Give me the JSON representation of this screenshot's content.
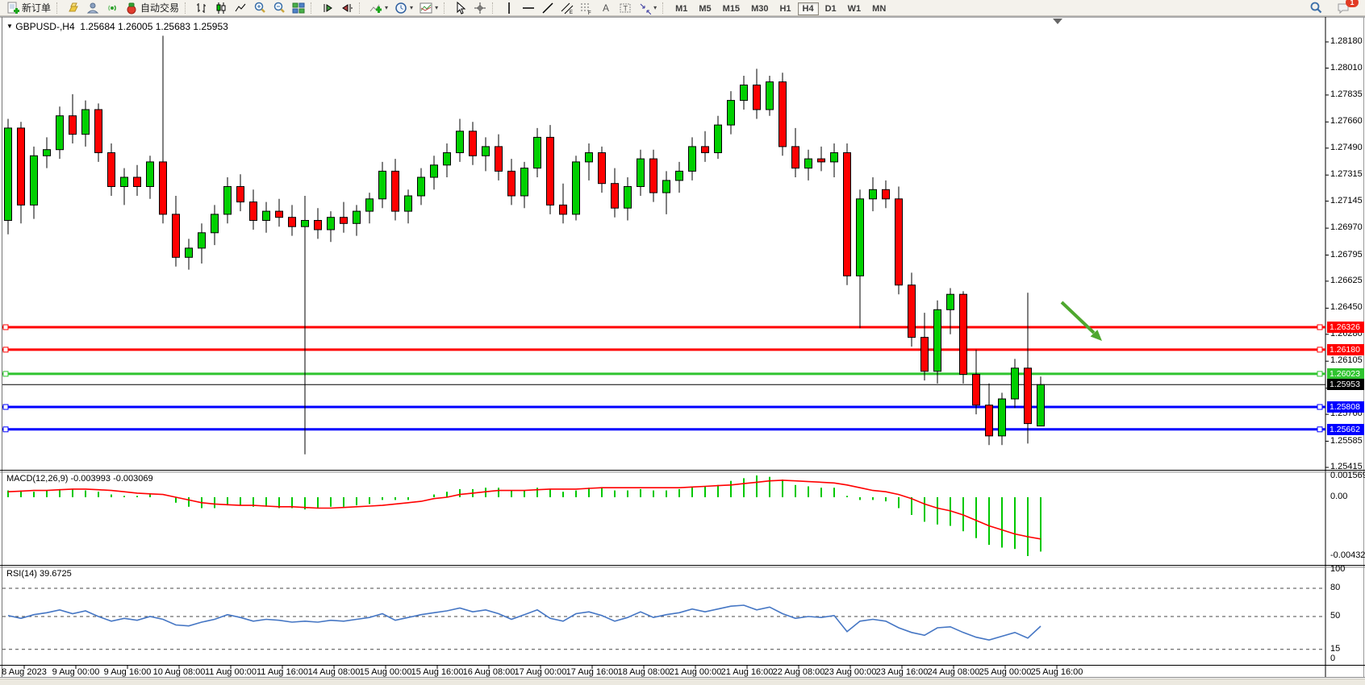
{
  "toolbar": {
    "new_order_label": "新订单",
    "autotrade_label": "自动交易",
    "timeframes": [
      "M1",
      "M5",
      "M15",
      "M30",
      "H1",
      "H4",
      "D1",
      "W1",
      "MN"
    ],
    "active_timeframe": "H4",
    "notification_badge": "1"
  },
  "chart": {
    "symbol_period": "GBPUSD-,H4",
    "ohlc_text": "1.25684 1.26005 1.25683 1.25953",
    "open": "1.25684",
    "high": "1.26005",
    "low": "1.25683",
    "close": "1.25953"
  },
  "chart_data": {
    "type": "candlestick",
    "symbol": "GBPUSD-",
    "timeframe": "H4",
    "bull_color": "#00d000",
    "bear_color": "#ff0000",
    "price_axis_ticks": [
      "1.28180",
      "1.28010",
      "1.27835",
      "1.27660",
      "1.27490",
      "1.27315",
      "1.27145",
      "1.26970",
      "1.26795",
      "1.26625",
      "1.26450",
      "1.26280",
      "1.26105",
      "1.25930",
      "1.25760",
      "1.25585",
      "1.25415"
    ],
    "x_labels": [
      "8 Aug 2023",
      "9 Aug 00:00",
      "9 Aug 16:00",
      "10 Aug 08:00",
      "11 Aug 00:00",
      "11 Aug 16:00",
      "14 Aug 08:00",
      "15 Aug 00:00",
      "15 Aug 16:00",
      "16 Aug 08:00",
      "17 Aug 00:00",
      "17 Aug 16:00",
      "18 Aug 08:00",
      "21 Aug 00:00",
      "21 Aug 16:00",
      "22 Aug 08:00",
      "23 Aug 00:00",
      "23 Aug 16:00",
      "24 Aug 08:00",
      "25 Aug 00:00",
      "25 Aug 16:00"
    ],
    "candles": [
      [
        1.2702,
        1.2768,
        1.2693,
        1.2762
      ],
      [
        1.2762,
        1.2766,
        1.27,
        1.2712
      ],
      [
        1.2712,
        1.275,
        1.2703,
        1.2744
      ],
      [
        1.2744,
        1.2756,
        1.2736,
        1.2748
      ],
      [
        1.2748,
        1.2776,
        1.2742,
        1.277
      ],
      [
        1.277,
        1.2784,
        1.2752,
        1.2758
      ],
      [
        1.2758,
        1.278,
        1.275,
        1.2774
      ],
      [
        1.2774,
        1.2778,
        1.274,
        1.2746
      ],
      [
        1.2746,
        1.2752,
        1.2718,
        1.2724
      ],
      [
        1.2724,
        1.2736,
        1.2712,
        1.273
      ],
      [
        1.273,
        1.2738,
        1.2718,
        1.2724
      ],
      [
        1.2724,
        1.2744,
        1.2716,
        1.274
      ],
      [
        1.274,
        1.2822,
        1.27,
        1.2706
      ],
      [
        1.2706,
        1.2718,
        1.2672,
        1.2678
      ],
      [
        1.2678,
        1.269,
        1.267,
        1.2684
      ],
      [
        1.2684,
        1.27,
        1.2674,
        1.2694
      ],
      [
        1.2694,
        1.2712,
        1.2686,
        1.2706
      ],
      [
        1.2706,
        1.273,
        1.27,
        1.2724
      ],
      [
        1.2724,
        1.2732,
        1.2708,
        1.2714
      ],
      [
        1.2714,
        1.2722,
        1.2696,
        1.2702
      ],
      [
        1.2702,
        1.2714,
        1.2694,
        1.2708
      ],
      [
        1.2708,
        1.2716,
        1.2698,
        1.2704
      ],
      [
        1.2704,
        1.2712,
        1.2692,
        1.2698
      ],
      [
        1.2698,
        1.2718,
        1.255,
        1.2702
      ],
      [
        1.2702,
        1.271,
        1.269,
        1.2696
      ],
      [
        1.2696,
        1.2708,
        1.2688,
        1.2704
      ],
      [
        1.2704,
        1.2714,
        1.2694,
        1.27
      ],
      [
        1.27,
        1.2712,
        1.2692,
        1.2708
      ],
      [
        1.2708,
        1.272,
        1.27,
        1.2716
      ],
      [
        1.2716,
        1.274,
        1.271,
        1.2734
      ],
      [
        1.2734,
        1.2742,
        1.2702,
        1.2708
      ],
      [
        1.2708,
        1.2722,
        1.27,
        1.2718
      ],
      [
        1.2718,
        1.2736,
        1.2712,
        1.273
      ],
      [
        1.273,
        1.2744,
        1.2722,
        1.2738
      ],
      [
        1.2738,
        1.2752,
        1.273,
        1.2746
      ],
      [
        1.2746,
        1.2768,
        1.274,
        1.276
      ],
      [
        1.276,
        1.2766,
        1.2738,
        1.2744
      ],
      [
        1.2744,
        1.2756,
        1.2734,
        1.275
      ],
      [
        1.275,
        1.2758,
        1.2728,
        1.2734
      ],
      [
        1.2734,
        1.2742,
        1.2712,
        1.2718
      ],
      [
        1.2718,
        1.274,
        1.271,
        1.2736
      ],
      [
        1.2736,
        1.2762,
        1.273,
        1.2756
      ],
      [
        1.2756,
        1.2764,
        1.2706,
        1.2712
      ],
      [
        1.2712,
        1.2726,
        1.27,
        1.2706
      ],
      [
        1.2706,
        1.2744,
        1.2702,
        1.274
      ],
      [
        1.274,
        1.2752,
        1.2728,
        1.2746
      ],
      [
        1.2746,
        1.275,
        1.272,
        1.2726
      ],
      [
        1.2726,
        1.2736,
        1.2704,
        1.271
      ],
      [
        1.271,
        1.273,
        1.2702,
        1.2724
      ],
      [
        1.2724,
        1.2748,
        1.2718,
        1.2742
      ],
      [
        1.2742,
        1.2748,
        1.2714,
        1.272
      ],
      [
        1.272,
        1.2734,
        1.2706,
        1.2728
      ],
      [
        1.2728,
        1.274,
        1.272,
        1.2734
      ],
      [
        1.2734,
        1.2756,
        1.2728,
        1.275
      ],
      [
        1.275,
        1.276,
        1.274,
        1.2746
      ],
      [
        1.2746,
        1.277,
        1.2742,
        1.2764
      ],
      [
        1.2764,
        1.2786,
        1.2758,
        1.278
      ],
      [
        1.278,
        1.2796,
        1.2774,
        1.279
      ],
      [
        1.279,
        1.28005,
        1.2768,
        1.2774
      ],
      [
        1.2774,
        1.2796,
        1.277,
        1.2792
      ],
      [
        1.2792,
        1.2798,
        1.2744,
        1.275
      ],
      [
        1.275,
        1.2762,
        1.273,
        1.2736
      ],
      [
        1.2736,
        1.2748,
        1.2728,
        1.2742
      ],
      [
        1.2742,
        1.275,
        1.2734,
        1.274
      ],
      [
        1.274,
        1.2752,
        1.273,
        1.2746
      ],
      [
        1.2746,
        1.2752,
        1.266,
        1.2666
      ],
      [
        1.2666,
        1.2722,
        1.2632,
        1.2716
      ],
      [
        1.2716,
        1.273,
        1.2708,
        1.2722
      ],
      [
        1.2722,
        1.2728,
        1.271,
        1.2716
      ],
      [
        1.2716,
        1.2724,
        1.2654,
        1.266
      ],
      [
        1.266,
        1.2668,
        1.262,
        1.2626
      ],
      [
        1.2626,
        1.2642,
        1.2598,
        1.2604
      ],
      [
        1.2604,
        1.265,
        1.2596,
        1.2644
      ],
      [
        1.2644,
        1.2658,
        1.2628,
        1.2654
      ],
      [
        1.2654,
        1.2656,
        1.2596,
        1.2602
      ],
      [
        1.2602,
        1.2618,
        1.2576,
        1.2582
      ],
      [
        1.2582,
        1.2596,
        1.2556,
        1.2562
      ],
      [
        1.2562,
        1.259,
        1.2556,
        1.2586
      ],
      [
        1.2586,
        1.2612,
        1.258,
        1.2606
      ],
      [
        1.2606,
        1.2655,
        1.2557,
        1.257
      ],
      [
        1.25684,
        1.26005,
        1.25683,
        1.25953
      ]
    ],
    "hlines": [
      {
        "price": "1.26326",
        "value": 1.26326,
        "color": "#ff0000",
        "width": 3
      },
      {
        "price": "1.26180",
        "value": 1.2618,
        "color": "#ff0000",
        "width": 3
      },
      {
        "price": "1.26023",
        "value": 1.26023,
        "color": "#2fc42f",
        "width": 3
      },
      {
        "price": "1.25953",
        "value": 1.25953,
        "color": "#000000",
        "width": 1,
        "bid": true
      },
      {
        "price": "1.25808",
        "value": 1.25808,
        "color": "#0000ff",
        "width": 3
      },
      {
        "price": "1.25662",
        "value": 1.25662,
        "color": "#0000ff",
        "width": 3
      }
    ],
    "arrow_annotation": {
      "color": "#4ea72e",
      "points_to": "resistance zone 1.26180"
    },
    "macd": {
      "label_text": "MACD(12,26,9) -0.003993 -0.003069",
      "main_value": -0.003993,
      "signal_value": -0.003069,
      "axis_ticks": [
        "0.001569",
        "0.00",
        "-0.004322"
      ],
      "hist_color": "#00c800",
      "signal_color": "#ff0000",
      "histogram": [
        0.0005,
        0.0005,
        0.0004,
        0.0005,
        0.0006,
        0.0006,
        0.0005,
        0.0004,
        0.0002,
        0.0001,
        0.0001,
        0.0002,
        0.0,
        -0.0004,
        -0.0007,
        -0.0008,
        -0.0008,
        -0.0006,
        -0.0006,
        -0.0007,
        -0.0007,
        -0.0008,
        -0.0008,
        -0.0009,
        -0.0008,
        -0.0007,
        -0.0007,
        -0.0006,
        -0.0005,
        -0.0002,
        -0.0002,
        -0.0002,
        0.0,
        0.0002,
        0.0004,
        0.0006,
        0.0006,
        0.0007,
        0.0007,
        0.0005,
        0.0005,
        0.0007,
        0.0006,
        0.0004,
        0.0005,
        0.0007,
        0.0007,
        0.0005,
        0.0005,
        0.0006,
        0.0005,
        0.0005,
        0.0006,
        0.0008,
        0.0008,
        0.0009,
        0.0012,
        0.0014,
        0.0016,
        0.0015,
        0.0013,
        0.0009,
        0.0008,
        0.0007,
        0.0007,
        0.0001,
        -0.0002,
        -0.0002,
        -0.0003,
        -0.0008,
        -0.0013,
        -0.0018,
        -0.002,
        -0.0021,
        -0.0025,
        -0.003,
        -0.0035,
        -0.0037,
        -0.0038,
        -0.004322,
        -0.003993
      ],
      "signal": [
        0.0004,
        0.00045,
        0.0005,
        0.0005,
        0.00055,
        0.0006,
        0.0006,
        0.00055,
        0.0005,
        0.0004,
        0.0003,
        0.00025,
        0.0002,
        0.0,
        -0.0002,
        -0.0004,
        -0.0005,
        -0.00055,
        -0.0006,
        -0.0006,
        -0.00065,
        -0.0007,
        -0.0007,
        -0.00075,
        -0.0008,
        -0.0008,
        -0.00075,
        -0.0007,
        -0.00065,
        -0.0006,
        -0.0005,
        -0.0004,
        -0.0003,
        -0.0001,
        0.0,
        0.0002,
        0.0003,
        0.0004,
        0.0005,
        0.0005,
        0.0005,
        0.00055,
        0.0006,
        0.0006,
        0.0006,
        0.00065,
        0.0007,
        0.0007,
        0.0007,
        0.0007,
        0.0007,
        0.0007,
        0.0007,
        0.00075,
        0.0008,
        0.00085,
        0.0009,
        0.001,
        0.0011,
        0.0012,
        0.00125,
        0.0012,
        0.00115,
        0.0011,
        0.00105,
        0.0009,
        0.0007,
        0.0005,
        0.0004,
        0.0002,
        -0.0001,
        -0.0005,
        -0.0008,
        -0.001,
        -0.0013,
        -0.0017,
        -0.0021,
        -0.0024,
        -0.0027,
        -0.0029,
        -0.003069
      ]
    },
    "rsi": {
      "label_text": "RSI(14) 39.6725",
      "value": 39.6725,
      "line_color": "#4576c4",
      "axis_ticks": [
        100,
        80,
        50,
        15,
        0
      ],
      "levels": [
        80,
        50,
        15
      ],
      "values": [
        51,
        48,
        52,
        54,
        57,
        53,
        56,
        50,
        45,
        48,
        46,
        50,
        47,
        41,
        40,
        44,
        47,
        52,
        49,
        45,
        47,
        46,
        44,
        45,
        44,
        46,
        45,
        47,
        49,
        53,
        46,
        49,
        52,
        54,
        56,
        59,
        55,
        57,
        53,
        47,
        52,
        57,
        48,
        45,
        53,
        55,
        51,
        45,
        49,
        55,
        49,
        52,
        54,
        58,
        55,
        58,
        61,
        62,
        57,
        60,
        53,
        48,
        50,
        49,
        51,
        34,
        45,
        47,
        45,
        38,
        33,
        30,
        38,
        39,
        33,
        28,
        25,
        29,
        33,
        27,
        39.6725
      ]
    }
  }
}
